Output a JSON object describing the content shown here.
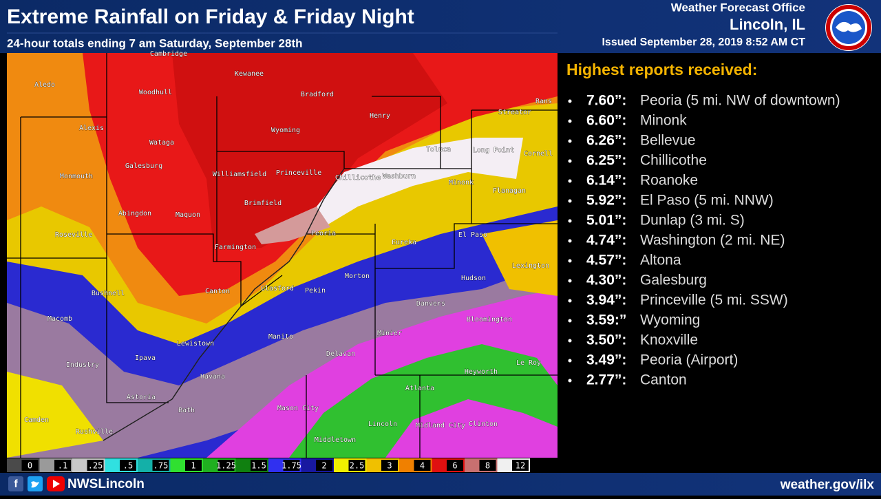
{
  "header": {
    "title": "Extreme Rainfall on Friday & Friday Night",
    "subtitle": "24-hour totals ending 7 am Saturday, September 28th",
    "office": "Weather Forecast Office",
    "location": "Lincoln, IL",
    "issued": "Issued September 28, 2019 8:52 AM CT"
  },
  "map": {
    "towns": [
      "Cambridge",
      "Kewanee",
      "Aledo",
      "Woodhull",
      "Bradford",
      "Streator",
      "Rans",
      "Henry",
      "Alexis",
      "Wyoming",
      "Wataga",
      "Toluca",
      "Long Point",
      "Cornell",
      "Galesburg",
      "Williamsfield",
      "Princeville",
      "Chillicothe",
      "Washburn",
      "Minonk",
      "Monmouth",
      "Flanagan",
      "Brimfield",
      "Abingdon",
      "Maquon",
      "Roseville",
      "Peoria",
      "Farmington",
      "Eureka",
      "El Paso",
      "Lexington",
      "Morton",
      "Hudson",
      "Canton",
      "Glasford",
      "Pekin",
      "Bushnell",
      "Danvers",
      "Macomb",
      "Bloomington",
      "Minier",
      "Lewistown",
      "Manito",
      "Delavan",
      "Ipava",
      "Le Roy",
      "Industry",
      "Heyworth",
      "Havana",
      "Atlanta",
      "Astoria",
      "Mason City",
      "Bath",
      "Camden",
      "Lincoln",
      "Midland City",
      "Clinton",
      "Rushville",
      "Middletown"
    ],
    "scale_labels": [
      "0",
      ".1",
      ".25",
      ".5",
      ".75",
      "1",
      "1.25",
      "1.5",
      "1.75",
      "2",
      "2.5",
      "3",
      "4",
      "6",
      "8",
      "12"
    ],
    "scale_colors": [
      "#4a4a4a",
      "#9a9a9a",
      "#c8c8c8",
      "#30e0e0",
      "#14b0a8",
      "#30e030",
      "#20b020",
      "#108010",
      "#3030f0",
      "#1818a0",
      "#f0f000",
      "#f0c000",
      "#f08000",
      "#e01010",
      "#c87070",
      "#f0f0f0"
    ]
  },
  "panel": {
    "heading": "Highest reports received:",
    "reports": [
      {
        "amount": "7.60”:",
        "place": "Peoria (5 mi. NW of downtown)"
      },
      {
        "amount": "6.60”:",
        "place": "Minonk"
      },
      {
        "amount": "6.26”:",
        "place": "Bellevue"
      },
      {
        "amount": "6.25”:",
        "place": "Chillicothe"
      },
      {
        "amount": "6.14”:",
        "place": "Roanoke"
      },
      {
        "amount": "5.92”:",
        "place": "El Paso (5 mi. NNW)"
      },
      {
        "amount": "5.01”:",
        "place": "Dunlap (3 mi. S)"
      },
      {
        "amount": "4.74”:",
        "place": "Washington (2 mi. NE)"
      },
      {
        "amount": "4.57”:",
        "place": "Altona"
      },
      {
        "amount": "4.30”:",
        "place": "Galesburg"
      },
      {
        "amount": "3.94”:",
        "place": "Princeville (5 mi. SSW)"
      },
      {
        "amount": "3.59:”",
        "place": "Wyoming"
      },
      {
        "amount": "3.50”:",
        "place": "Knoxville"
      },
      {
        "amount": "3.49”:",
        "place": "Peoria (Airport)"
      },
      {
        "amount": "2.77”:",
        "place": "Canton"
      }
    ]
  },
  "footer": {
    "handle": "NWSLincoln",
    "url": "weather.gov/ilx"
  }
}
